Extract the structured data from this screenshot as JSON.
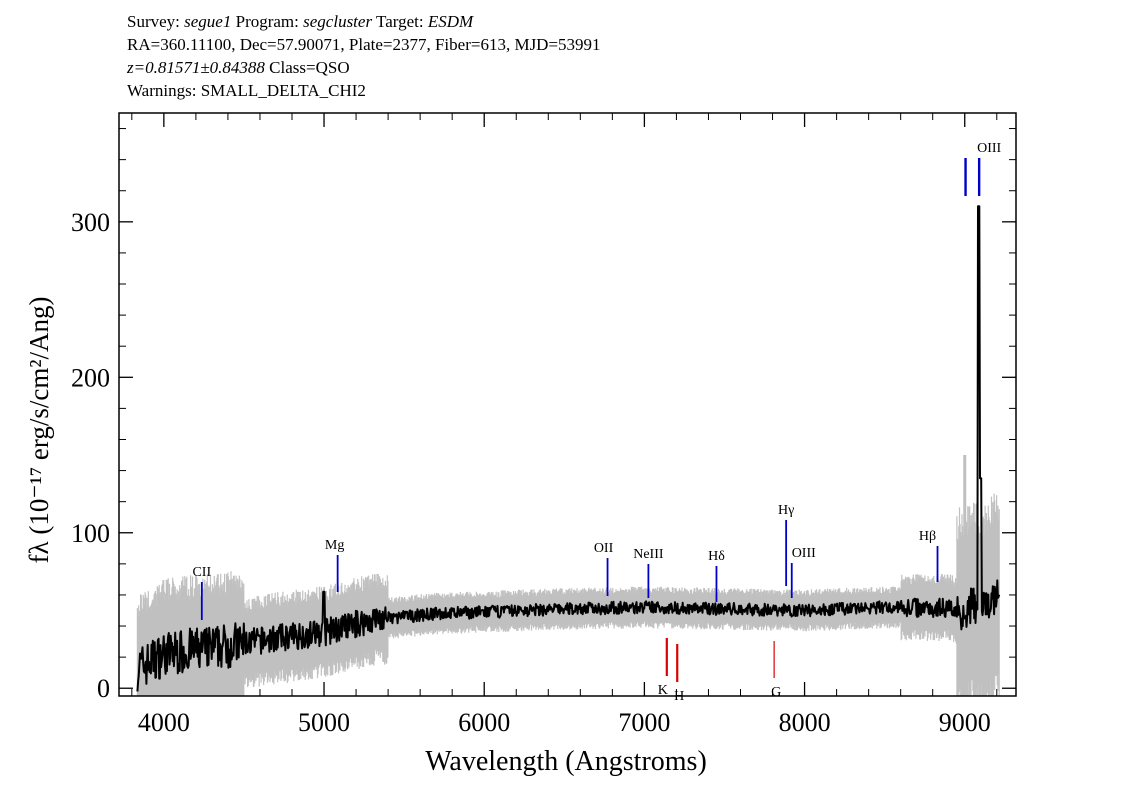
{
  "header": {
    "line1": {
      "survey_label": "Survey: ",
      "survey": "segue1",
      "program_label": " Program: ",
      "program": "segcluster",
      "target_label": " Target: ",
      "target": "ESDM"
    },
    "line2": "RA=360.11100, Dec=57.90071, Plate=2377, Fiber=613, MJD=53991",
    "line3": {
      "z": "z=0.81571±0.84388",
      "class": " Class=QSO"
    },
    "line4": "Warnings: SMALL_DELTA_CHI2"
  },
  "colors": {
    "spectrum": "#000000",
    "error": "#c0c0c0",
    "emission": "#0000cc",
    "absorption": "#dd0000"
  },
  "chart_data": {
    "type": "line",
    "title": "",
    "xlabel": "Wavelength (Angstroms)",
    "ylabel": "fλ (10⁻¹⁷ erg/s/cm²/Ang)",
    "xlim": [
      3720,
      9320
    ],
    "ylim": [
      -5,
      370
    ],
    "x_ticks": [
      4000,
      5000,
      6000,
      7000,
      8000,
      9000
    ],
    "x_tick_labels": [
      "4000",
      "5000",
      "6000",
      "7000",
      "8000",
      "9000"
    ],
    "y_ticks": [
      0,
      100,
      200,
      300
    ],
    "y_tick_labels": [
      "0",
      "100",
      "200",
      "300"
    ],
    "x_minor_step": 200,
    "y_minor_step": 20,
    "continuum_anchors": [
      {
        "x": 3830,
        "y": 12
      },
      {
        "x": 4000,
        "y": 22
      },
      {
        "x": 4300,
        "y": 26
      },
      {
        "x": 4700,
        "y": 32
      },
      {
        "x": 5000,
        "y": 36
      },
      {
        "x": 5300,
        "y": 44
      },
      {
        "x": 5700,
        "y": 48
      },
      {
        "x": 6000,
        "y": 49
      },
      {
        "x": 6500,
        "y": 51
      },
      {
        "x": 7000,
        "y": 52
      },
      {
        "x": 7500,
        "y": 51
      },
      {
        "x": 8000,
        "y": 50
      },
      {
        "x": 8500,
        "y": 52
      },
      {
        "x": 8900,
        "y": 52
      },
      {
        "x": 9000,
        "y": 48
      },
      {
        "x": 9050,
        "y": 55
      },
      {
        "x": 9100,
        "y": 48
      },
      {
        "x": 9200,
        "y": 60
      }
    ],
    "spectrum_peaks": [
      {
        "x": 9088,
        "y": 310
      },
      {
        "x": 9100,
        "y": 135
      },
      {
        "x": 5000,
        "y": 62
      }
    ],
    "emission_lines": [
      {
        "name": "CII",
        "x": 4237,
        "label": "CII"
      },
      {
        "name": "Mg",
        "x": 5085,
        "label": "Mg"
      },
      {
        "name": "OII",
        "x": 6770,
        "label": "OII"
      },
      {
        "name": "NeIII",
        "x": 7025,
        "label": "NeIII"
      },
      {
        "name": "Hdelta",
        "x": 7450,
        "label": "Hδ"
      },
      {
        "name": "Hgamma",
        "x": 7885,
        "label": "Hγ"
      },
      {
        "name": "OIII",
        "x": 7920,
        "label": "OIII"
      },
      {
        "name": "Hbeta",
        "x": 8830,
        "label": "Hβ"
      },
      {
        "name": "OIII-4959",
        "x": 9005,
        "label": ""
      },
      {
        "name": "OIII-5007",
        "x": 9090,
        "label": "OIII"
      }
    ],
    "absorption_lines": [
      {
        "name": "K",
        "x": 7140,
        "label": "K"
      },
      {
        "name": "H",
        "x": 7205,
        "label": "H"
      },
      {
        "name": "G",
        "x": 7810,
        "label": "G"
      }
    ]
  }
}
